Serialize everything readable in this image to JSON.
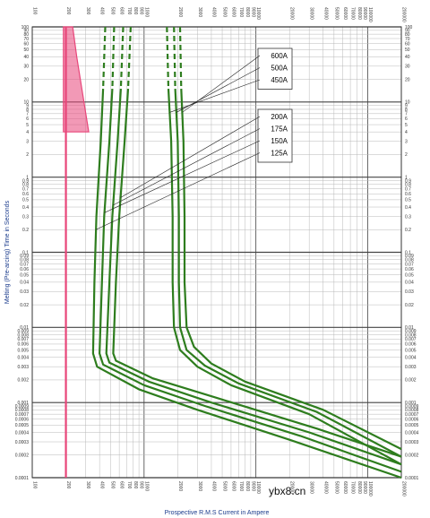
{
  "chart_data": {
    "type": "line",
    "title": "",
    "xlabel": "Prospective R.M.S Current in Ampere",
    "ylabel": "Melting (Pre-arcing) Time in Seconds",
    "x_scale": "log",
    "y_scale": "log",
    "xlim": [
      100,
      200000
    ],
    "ylim": [
      0.0001,
      100
    ],
    "x_tick_labels": [
      "100",
      "200",
      "300",
      "400",
      "500",
      "600",
      "700",
      "800",
      "900",
      "1000",
      "2000",
      "3000",
      "4000",
      "5000",
      "6000",
      "7000",
      "8000",
      "9000",
      "10000",
      "20000",
      "30000",
      "40000",
      "50000",
      "60000",
      "70000",
      "80000",
      "90000",
      "100000",
      "200000"
    ],
    "y_tick_labels": [
      "100",
      "90",
      "80",
      "70",
      "60",
      "50",
      "40",
      "30",
      "20",
      "10",
      "9",
      "8",
      "7",
      "6",
      "5",
      "4",
      "3",
      "2",
      "1",
      "0.9",
      "0.8",
      "0.7",
      "0.6",
      "0.5",
      "0.4",
      "0.3",
      "0.2",
      "0.1",
      "0.09",
      "0.08",
      "0.07",
      "0.06",
      "0.05",
      "0.04",
      "0.03",
      "0.02",
      "0.01",
      "0.009",
      "0.008",
      "0.007",
      "0.006",
      "0.005",
      "0.004",
      "0.003",
      "0.002",
      "0.001",
      "0.0009",
      "0.0008",
      "0.0007",
      "0.0006",
      "0.0005",
      "0.0004",
      "0.0003",
      "0.0002",
      "0.0001"
    ],
    "grid": true,
    "series_color": "#2e7d1e",
    "highlight_color": "#e8467a",
    "series": [
      {
        "name": "125A",
        "points": [
          [
            450,
            100
          ],
          [
            430,
            15
          ],
          [
            410,
            3
          ],
          [
            375,
            0.3
          ],
          [
            360,
            0.04
          ],
          [
            350,
            0.0045
          ],
          [
            380,
            0.003
          ],
          [
            900,
            0.0015
          ],
          [
            3000,
            0.0008
          ],
          [
            20000,
            0.00032
          ],
          [
            200000,
            0.0001
          ]
        ]
      },
      {
        "name": "150A",
        "points": [
          [
            540,
            100
          ],
          [
            520,
            15
          ],
          [
            490,
            3
          ],
          [
            440,
            0.3
          ],
          [
            420,
            0.04
          ],
          [
            400,
            0.0045
          ],
          [
            430,
            0.0032
          ],
          [
            1000,
            0.0017
          ],
          [
            3500,
            0.0009
          ],
          [
            25000,
            0.00036
          ],
          [
            200000,
            0.00012
          ]
        ]
      },
      {
        "name": "175A",
        "points": [
          [
            650,
            100
          ],
          [
            620,
            15
          ],
          [
            580,
            3
          ],
          [
            520,
            0.3
          ],
          [
            490,
            0.04
          ],
          [
            460,
            0.0045
          ],
          [
            490,
            0.0034
          ],
          [
            1100,
            0.0019
          ],
          [
            4000,
            0.001
          ],
          [
            30000,
            0.0004
          ],
          [
            200000,
            0.00015
          ]
        ]
      },
      {
        "name": "200A",
        "points": [
          [
            760,
            100
          ],
          [
            720,
            15
          ],
          [
            670,
            3
          ],
          [
            600,
            0.3
          ],
          [
            560,
            0.04
          ],
          [
            530,
            0.0045
          ],
          [
            560,
            0.0036
          ],
          [
            1200,
            0.0021
          ],
          [
            4500,
            0.00115
          ],
          [
            35000,
            0.00045
          ],
          [
            200000,
            0.00019
          ]
        ]
      },
      {
        "name": "450A",
        "points": [
          [
            1600,
            100
          ],
          [
            1650,
            15
          ],
          [
            1750,
            3
          ],
          [
            1800,
            0.3
          ],
          [
            1800,
            0.04
          ],
          [
            1850,
            0.01
          ],
          [
            2100,
            0.005
          ],
          [
            3000,
            0.003
          ],
          [
            6000,
            0.0017
          ],
          [
            30000,
            0.0007
          ],
          [
            200000,
            0.00015
          ]
        ]
      },
      {
        "name": "500A",
        "points": [
          [
            1850,
            100
          ],
          [
            1900,
            15
          ],
          [
            2000,
            3
          ],
          [
            2050,
            0.3
          ],
          [
            2050,
            0.04
          ],
          [
            2100,
            0.01
          ],
          [
            2400,
            0.005
          ],
          [
            3500,
            0.0031
          ],
          [
            7000,
            0.0018
          ],
          [
            35000,
            0.00075
          ],
          [
            200000,
            0.00019
          ]
        ]
      },
      {
        "name": "600A",
        "points": [
          [
            2100,
            100
          ],
          [
            2150,
            15
          ],
          [
            2250,
            3
          ],
          [
            2300,
            0.3
          ],
          [
            2300,
            0.04
          ],
          [
            2400,
            0.01
          ],
          [
            2800,
            0.0055
          ],
          [
            4000,
            0.0033
          ],
          [
            8000,
            0.0019
          ],
          [
            40000,
            0.0008
          ],
          [
            200000,
            0.00024
          ]
        ]
      }
    ],
    "dashed_below_time": 30,
    "highlight_region": [
      [
        190,
        100
      ],
      [
        230,
        100
      ],
      [
        250,
        40
      ],
      [
        290,
        10
      ],
      [
        320,
        4
      ],
      [
        190,
        4
      ]
    ],
    "highlight_line_x": 200,
    "callout_groups": [
      {
        "labels": [
          "600A",
          "500A",
          "450A"
        ]
      },
      {
        "labels": [
          "200A",
          "175A",
          "150A",
          "125A"
        ]
      }
    ],
    "watermark": "ybx8.cn"
  }
}
